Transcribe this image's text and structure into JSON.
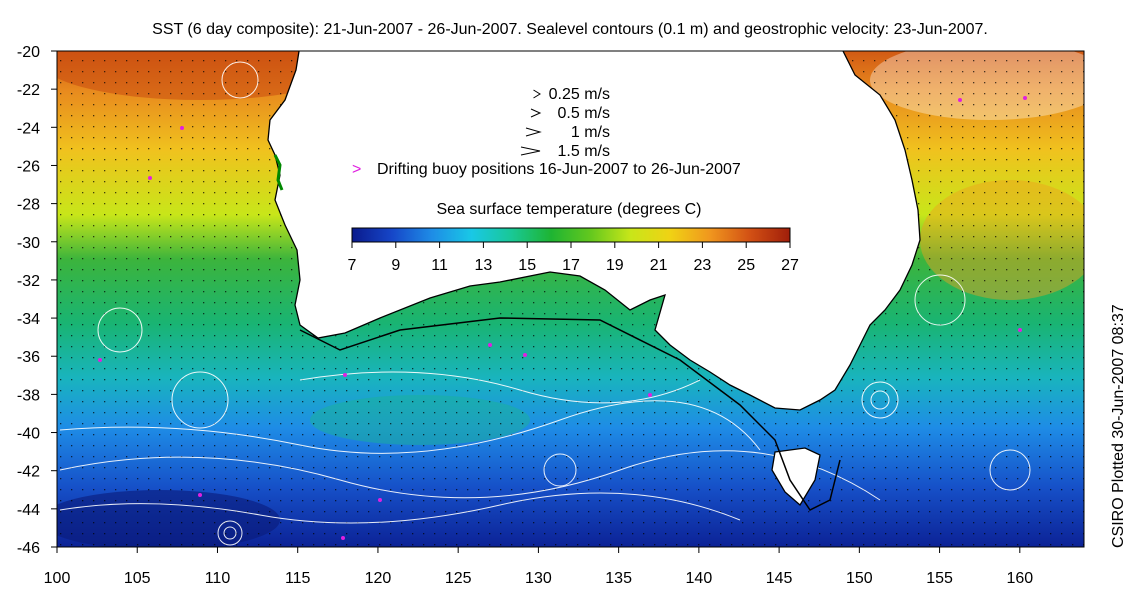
{
  "title": "SST (6 day composite): 21-Jun-2007 - 26-Jun-2007. Sealevel contours (0.1 m) and geostrophic velocity: 23-Jun-2007.",
  "credit": "CSIRO Plotted 30-Jun-2007 08:37",
  "velocity_legend": [
    {
      "label": "0.25 m/s",
      "speed": 0.25
    },
    {
      "label": "0.5 m/s",
      "speed": 0.5
    },
    {
      "label": "1 m/s",
      "speed": 1
    },
    {
      "label": "1.5 m/s",
      "speed": 1.5
    }
  ],
  "buoy_legend": {
    "symbol": ">",
    "label": "Drifting buoy positions 16-Jun-2007 to 26-Jun-2007",
    "color": "#e020e0"
  },
  "colorbar": {
    "title": "Sea surface temperature (degrees C)",
    "min": 7,
    "max": 27,
    "ticks": [
      "7",
      "9",
      "11",
      "13",
      "15",
      "17",
      "19",
      "21",
      "23",
      "25",
      "27"
    ],
    "colors": [
      "#0a1a8c",
      "#1646c8",
      "#1e8ce6",
      "#19c8e6",
      "#19c896",
      "#1eb432",
      "#64c81e",
      "#c8e619",
      "#f0d214",
      "#f0961e",
      "#d25014",
      "#a01e0a"
    ]
  },
  "map": {
    "lon_range": [
      100,
      164
    ],
    "lat_range": [
      -46,
      -20
    ],
    "x_ticks": [
      "100",
      "105",
      "110",
      "115",
      "120",
      "125",
      "130",
      "135",
      "140",
      "145",
      "150",
      "155",
      "160"
    ],
    "y_ticks": [
      "-20",
      "-22",
      "-24",
      "-26",
      "-28",
      "-30",
      "-32",
      "-34",
      "-36",
      "-38",
      "-40",
      "-42",
      "-44",
      "-46"
    ],
    "land_color": "#ffffff",
    "contour_color": "#ffffff"
  }
}
